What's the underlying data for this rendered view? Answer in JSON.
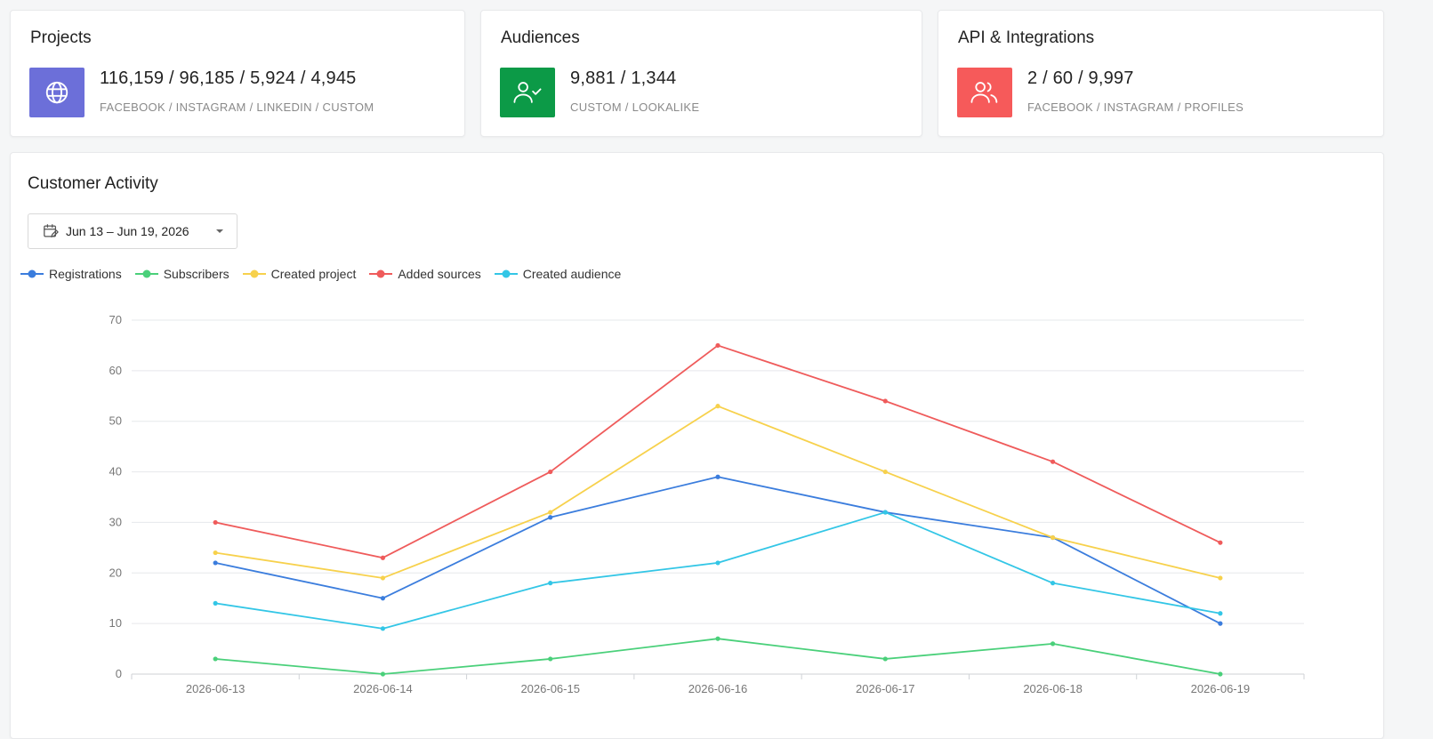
{
  "stats": [
    {
      "title": "Projects",
      "value": "116,159 / 96,185 / 5,924 / 4,945",
      "sub": "FACEBOOK / INSTAGRAM / LINKEDIN / CUSTOM",
      "icon": "globe-icon",
      "color": "#6c6fd9"
    },
    {
      "title": "Audiences",
      "value": "9,881 / 1,344",
      "sub": "CUSTOM / LOOKALIKE",
      "icon": "user-check-icon",
      "color": "#0c9a47"
    },
    {
      "title": "API & Integrations",
      "value": "2 / 60 / 9,997",
      "sub": "FACEBOOK / INSTAGRAM / PROFILES",
      "icon": "users-icon",
      "color": "#f65a5a"
    }
  ],
  "activity": {
    "title": "Customer Activity",
    "date_range": "Jun 13 – Jun 19, 2026"
  },
  "chart_data": {
    "type": "line",
    "x": [
      "2026-06-13",
      "2026-06-14",
      "2026-06-15",
      "2026-06-16",
      "2026-06-17",
      "2026-06-18",
      "2026-06-19"
    ],
    "ylim": [
      0,
      70
    ],
    "yticks": [
      0,
      10,
      20,
      30,
      40,
      50,
      60,
      70
    ],
    "grid": true,
    "legend": "top-left",
    "series": [
      {
        "name": "Registrations",
        "color": "#3b7ddd",
        "values": [
          22,
          15,
          31,
          39,
          32,
          27,
          10
        ]
      },
      {
        "name": "Subscribers",
        "color": "#4ad07a",
        "values": [
          3,
          0,
          3,
          7,
          3,
          6,
          0
        ]
      },
      {
        "name": "Created project",
        "color": "#f7d14c",
        "values": [
          24,
          19,
          32,
          53,
          40,
          27,
          19
        ]
      },
      {
        "name": "Added sources",
        "color": "#ef5b5b",
        "values": [
          30,
          23,
          40,
          65,
          54,
          42,
          26
        ]
      },
      {
        "name": "Created audience",
        "color": "#33c6e6",
        "values": [
          14,
          9,
          18,
          22,
          32,
          18,
          12
        ]
      }
    ]
  }
}
